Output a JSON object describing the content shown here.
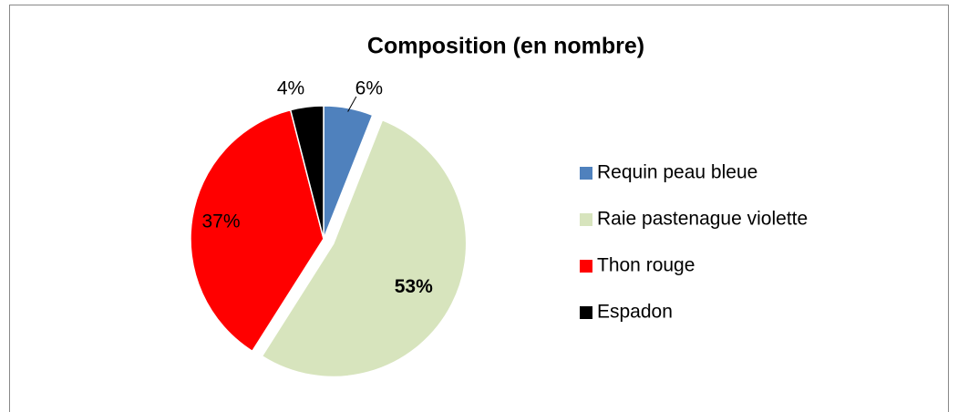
{
  "chart_data": {
    "type": "pie",
    "title": "Composition (en nombre)",
    "categories": [
      "Requin peau bleue",
      "Raie pastenague violette",
      "Thon rouge",
      "Espadon"
    ],
    "values": [
      6,
      53,
      37,
      4
    ],
    "value_labels": [
      "6%",
      "53%",
      "37%",
      "4%"
    ],
    "colors": [
      "#4f81bd",
      "#d7e4bd",
      "#ff0000",
      "#000000"
    ],
    "exploded": [
      false,
      true,
      false,
      false
    ],
    "legend": "right"
  }
}
